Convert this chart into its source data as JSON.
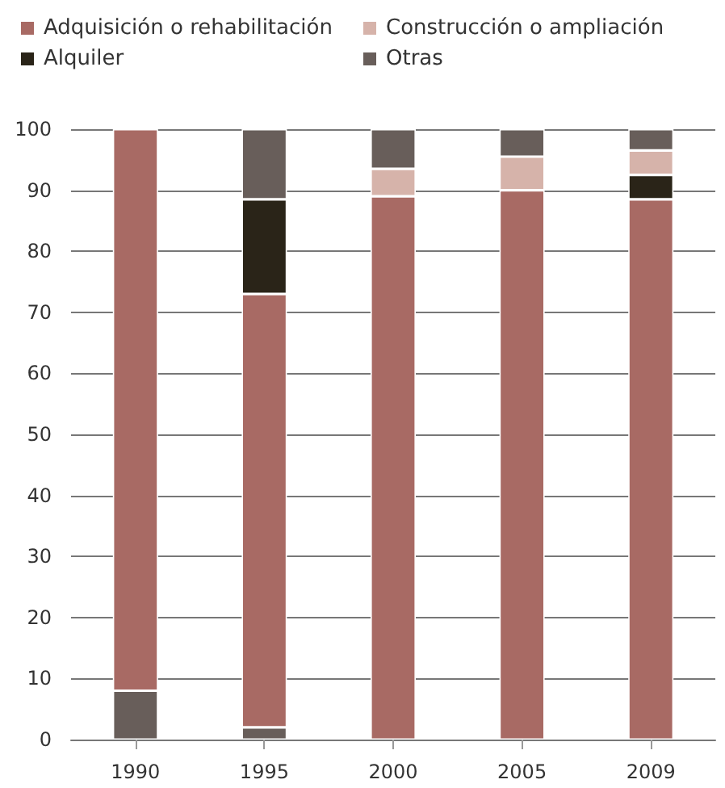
{
  "chart_data": {
    "type": "bar",
    "stacked": true,
    "categories": [
      "1990",
      "1995",
      "2000",
      "2005",
      "2009"
    ],
    "series": [
      {
        "color": "#685e5a",
        "values": [
          8,
          2,
          null,
          null,
          null
        ]
      },
      {
        "name": "Adquisición o rehabilitación",
        "color": "#a86a64",
        "values": [
          92,
          71,
          89,
          90,
          88.5
        ]
      },
      {
        "name": "Alquiler",
        "color": "#2a2418",
        "values": [
          null,
          15.5,
          null,
          null,
          4
        ]
      },
      {
        "name": "Construcción o ampliación",
        "color": "#d6b3aa",
        "values": [
          null,
          null,
          4.5,
          5.5,
          4
        ]
      },
      {
        "name": "Otras",
        "color": "#685e5a",
        "values": [
          null,
          11.5,
          6.5,
          4.5,
          3.5
        ]
      }
    ],
    "ylim": [
      0,
      100
    ],
    "yticks": [
      0,
      10,
      20,
      30,
      40,
      50,
      60,
      70,
      80,
      90,
      100
    ],
    "grid": "y",
    "legend": "top"
  }
}
